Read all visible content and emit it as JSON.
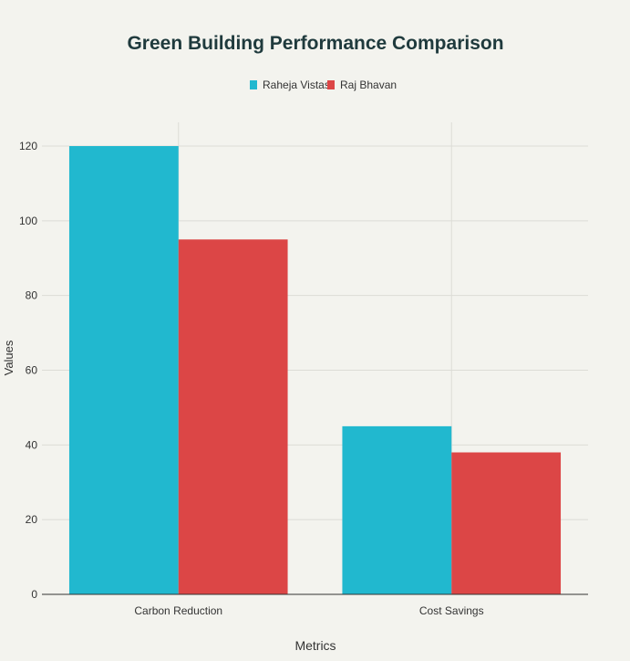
{
  "chart_data": {
    "type": "bar",
    "title": "Green Building Performance Comparison",
    "xlabel": "Metrics",
    "ylabel": "Values",
    "categories": [
      "Carbon Reduction",
      "Cost Savings"
    ],
    "series": [
      {
        "name": "Raheja Vistas",
        "values": [
          120,
          45
        ],
        "color": "#21b8cf"
      },
      {
        "name": "Raj Bhavan",
        "values": [
          95,
          38
        ],
        "color": "#dc4646"
      }
    ],
    "ylim": [
      0,
      130
    ],
    "yticks": [
      0,
      20,
      40,
      60,
      80,
      100,
      120
    ],
    "grid": true,
    "legend_position": "top-center"
  },
  "colors": {
    "background": "#f3f3ee",
    "grid": "#dcdcd6",
    "axis": "#333333",
    "text": "#333333",
    "title": "#1f3a3d"
  }
}
